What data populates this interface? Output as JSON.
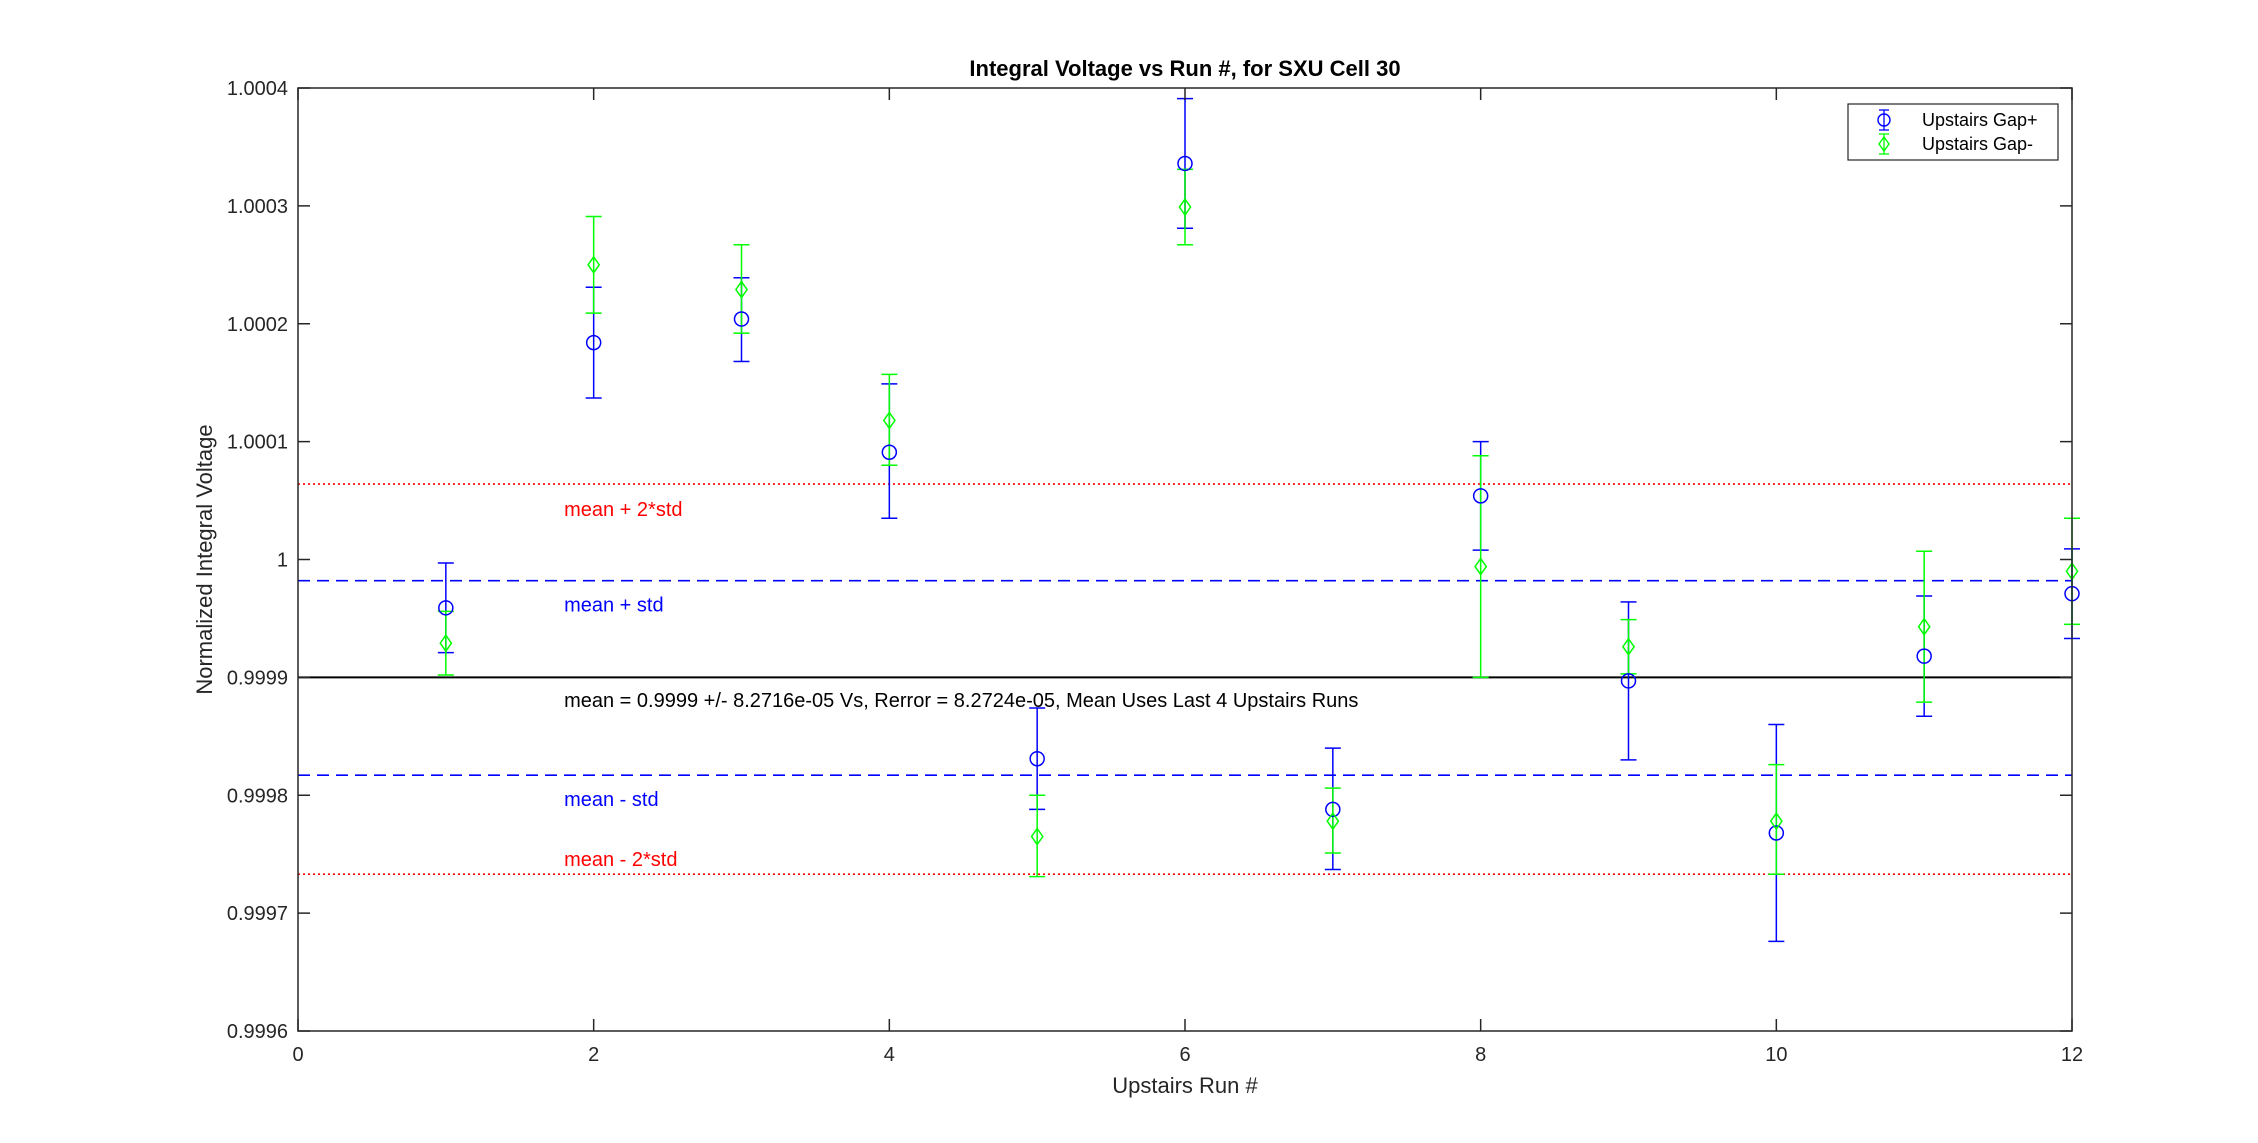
{
  "chart_data": {
    "type": "scatter",
    "title": "Integral Voltage vs Run #, for SXU Cell 30",
    "xlabel": "Upstairs Run #",
    "ylabel": "Normalized Integral Voltage",
    "xlim": [
      0,
      12
    ],
    "ylim": [
      0.9996,
      1.0004
    ],
    "xticks": [
      0,
      2,
      4,
      6,
      8,
      10,
      12
    ],
    "xtick_labels": [
      "0",
      "2",
      "4",
      "6",
      "8",
      "10",
      "12"
    ],
    "yticks": [
      0.9996,
      0.9997,
      0.9998,
      0.9999,
      1.0,
      1.0001,
      1.0002,
      1.0003,
      1.0004
    ],
    "ytick_labels": [
      "0.9996",
      "0.9997",
      "0.9998",
      "0.9999",
      "1",
      "1.0001",
      "1.0002",
      "1.0003",
      "1.0004"
    ],
    "grid": false,
    "legend_position": "top-right",
    "series": [
      {
        "name": "Upstairs Gap+",
        "color": "#0000ff",
        "marker": "circle",
        "x": [
          1,
          2,
          3,
          4,
          5,
          6,
          7,
          8,
          9,
          10,
          11,
          12
        ],
        "y": [
          0.999959,
          1.000184,
          1.000204,
          1.000091,
          0.999831,
          1.000336,
          0.999788,
          1.000054,
          0.999897,
          0.999768,
          0.999918,
          0.999971
        ],
        "err_low": [
          0.999921,
          1.000137,
          1.000168,
          1.000035,
          0.999788,
          1.000281,
          0.999737,
          1.000008,
          0.99983,
          0.999676,
          0.999867,
          0.999933
        ],
        "err_high": [
          0.999997,
          1.000231,
          1.000239,
          1.000149,
          0.999874,
          1.000391,
          0.99984,
          1.0001,
          0.999964,
          0.99986,
          0.999969,
          1.000009
        ]
      },
      {
        "name": "Upstairs Gap-",
        "color": "#00ff00",
        "marker": "diamond",
        "x": [
          1,
          2,
          3,
          4,
          5,
          6,
          7,
          8,
          9,
          10,
          11,
          12
        ],
        "y": [
          0.999929,
          1.00025,
          1.000229,
          1.000118,
          0.999765,
          1.000299,
          0.999778,
          0.999994,
          0.999926,
          0.999778,
          0.999943,
          0.99999
        ],
        "err_low": [
          0.999902,
          1.000209,
          1.000192,
          1.00008,
          0.999731,
          1.000267,
          0.999751,
          0.9999,
          0.999903,
          0.999733,
          0.999879,
          0.999945
        ],
        "err_high": [
          0.999956,
          1.000291,
          1.000267,
          1.000157,
          0.9998,
          1.000331,
          0.999806,
          1.000088,
          0.999949,
          0.999826,
          1.000007,
          1.000035
        ]
      }
    ],
    "reference_lines": [
      {
        "name": "mean",
        "y": 0.9999,
        "style": "solid",
        "color": "#000000"
      },
      {
        "name": "mean + std",
        "y": 0.999982,
        "style": "dashed",
        "color": "#0000ff"
      },
      {
        "name": "mean - std",
        "y": 0.999817,
        "style": "dashed",
        "color": "#0000ff"
      },
      {
        "name": "mean + 2*std",
        "y": 1.000064,
        "style": "dotted",
        "color": "#ff0000"
      },
      {
        "name": "mean - 2*std",
        "y": 0.999733,
        "style": "dotted",
        "color": "#ff0000"
      }
    ],
    "annotations": [
      {
        "text": "mean + 2*std",
        "x": 1.8,
        "y": 1.000043,
        "color": "#ff0000"
      },
      {
        "text": "mean + std",
        "x": 1.8,
        "y": 0.999962,
        "color": "#0000ff"
      },
      {
        "text": "mean = 0.9999 +/- 8.2716e-05 Vs, Rerror = 8.2724e-05, Mean Uses Last 4 Upstairs Runs",
        "x": 1.8,
        "y": 0.999881,
        "color": "#000000"
      },
      {
        "text": "mean - std",
        "x": 1.8,
        "y": 0.999797,
        "color": "#0000ff"
      },
      {
        "text": "mean - 2*std",
        "x": 1.8,
        "y": 0.999746,
        "color": "#ff0000"
      }
    ]
  }
}
